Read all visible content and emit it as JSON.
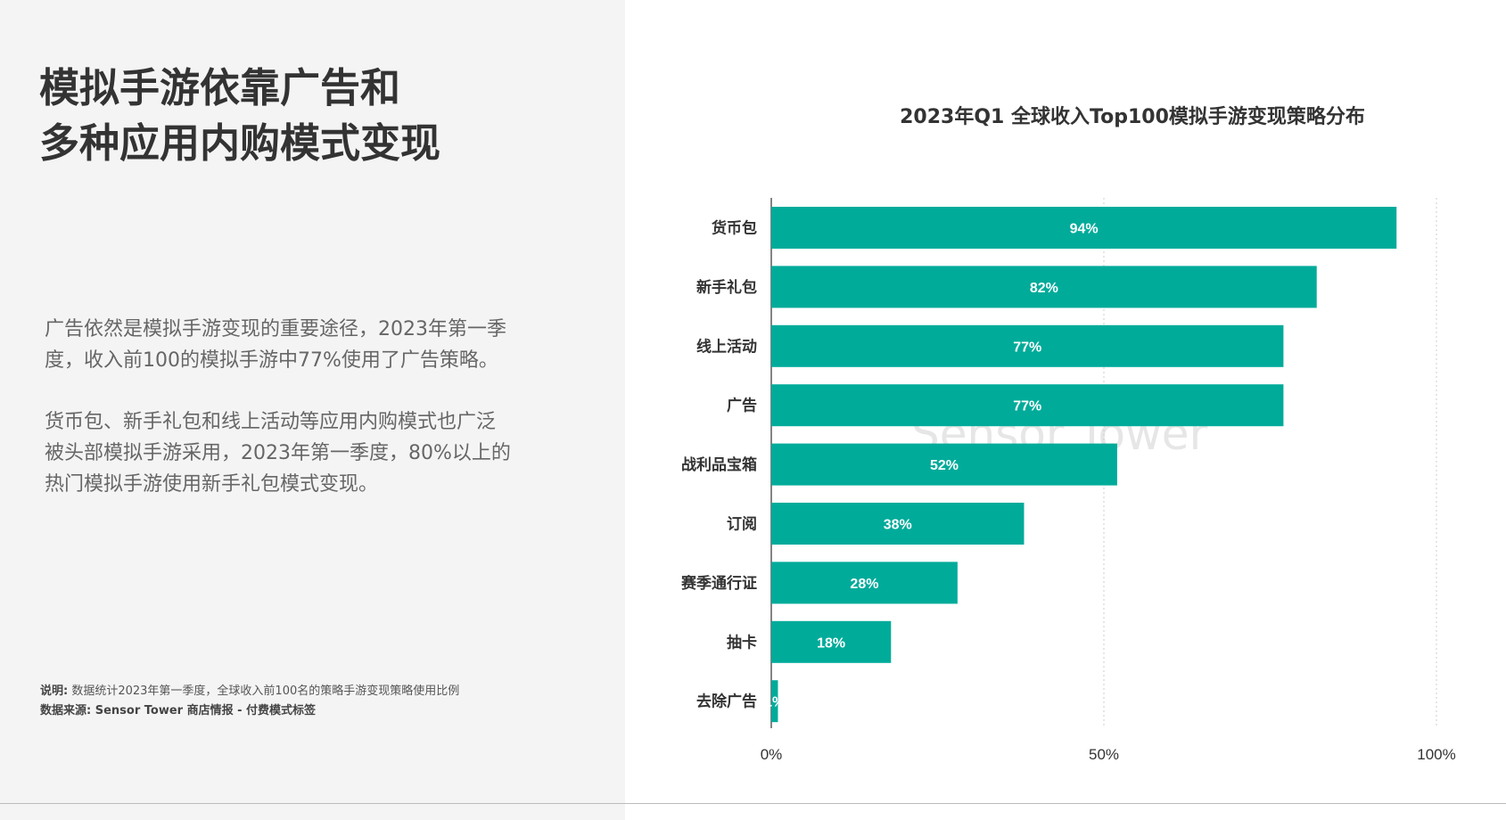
{
  "left": {
    "headline": [
      "模拟手游依靠广告和",
      "多种应用内购模式变现"
    ],
    "paragraph1": [
      "广告依然是模拟手游变现的重要途径，2023年第一季",
      "度，收入前100的模拟手游中77%使用了广告策略。"
    ],
    "paragraph2": [
      "货币包、新手礼包和线上活动等应用内购模式也广泛",
      "被头部模拟手游采用，2023年第一季度，80%以上的",
      "热门模拟手游使用新手礼包模式变现。"
    ],
    "note_label": "说明:",
    "note_text": "数据统计2023年第一季度，全球收入前100名的策略手游变现策略使用比例",
    "source_text": "数据来源: Sensor Tower 商店情报 - 付费模式标签"
  },
  "watermark": "Sensor Tower",
  "colors": {
    "bar": "#00ab9a",
    "panel": "#f4f4f4",
    "grid": "#cccccc"
  },
  "chart_data": {
    "type": "bar",
    "orientation": "horizontal",
    "title": "2023年Q1 全球收入Top100模拟手游变现策略分布",
    "categories": [
      "货币包",
      "新手礼包",
      "线上活动",
      "广告",
      "战利品宝箱",
      "订阅",
      "赛季通行证",
      "抽卡",
      "去除广告"
    ],
    "values": [
      94,
      82,
      77,
      77,
      52,
      38,
      28,
      18,
      1
    ],
    "value_labels": [
      "94%",
      "82%",
      "77%",
      "77%",
      "52%",
      "38%",
      "28%",
      "18%",
      "1%"
    ],
    "xlim": [
      0,
      100
    ],
    "x_ticks": [
      "0%",
      "50%",
      "100%"
    ],
    "grid": true,
    "legend": "none"
  }
}
